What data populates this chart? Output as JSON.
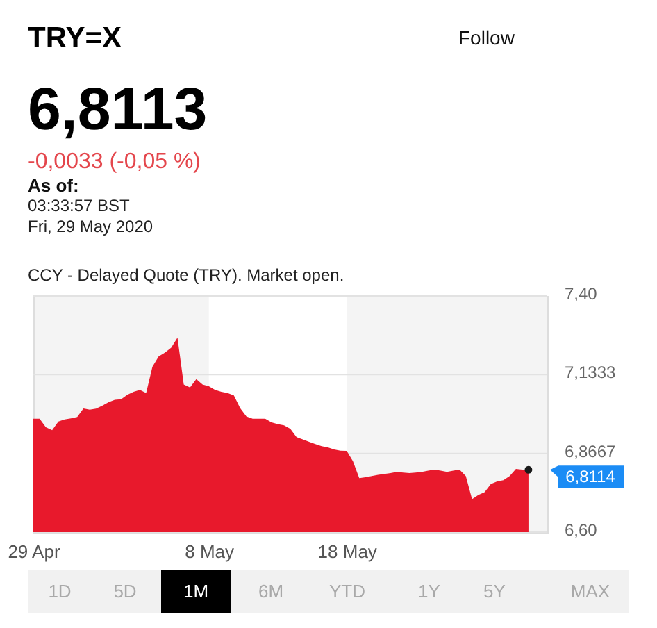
{
  "chart_data": {
    "type": "area",
    "title": "TRY=X",
    "annotations": [
      "Follow",
      "6,8113",
      "-0,0033 (-0,05 %)",
      "As of:",
      "03:33:57 BST",
      "Fri, 29 May 2020",
      "CCY - Delayed Quote (TRY). Market open.",
      "6,8114",
      "1D",
      "5D",
      "1M",
      "6M",
      "YTD",
      "1Y",
      "5Y",
      "MAX"
    ],
    "categories": [
      "29 Apr",
      null,
      null,
      null,
      null,
      null,
      null,
      null,
      null,
      null,
      null,
      null,
      null,
      null,
      null,
      null,
      null,
      null,
      null,
      null,
      null,
      null,
      null,
      null,
      null,
      null,
      null,
      null,
      "8 May",
      null,
      null,
      null,
      null,
      null,
      null,
      null,
      null,
      null,
      null,
      null,
      null,
      null,
      null,
      null,
      null,
      null,
      null,
      null,
      null,
      null,
      "18 May",
      null,
      null,
      null,
      null,
      null,
      null,
      null,
      null,
      null,
      null,
      null,
      null,
      null,
      null,
      null,
      null,
      null,
      null,
      null,
      null,
      null,
      null,
      null,
      null,
      null,
      null,
      null,
      null,
      null,
      null,
      null,
      null
    ],
    "values": [
      6.984,
      6.984,
      6.955,
      6.945,
      6.975,
      6.982,
      6.985,
      6.99,
      7.019,
      7.015,
      7.018,
      7.028,
      7.04,
      7.048,
      7.05,
      7.065,
      7.075,
      7.082,
      7.071,
      7.16,
      7.195,
      7.208,
      7.225,
      7.259,
      7.1,
      7.09,
      7.118,
      7.1,
      7.094,
      7.082,
      7.075,
      7.071,
      7.063,
      7.02,
      6.992,
      6.984,
      6.984,
      6.984,
      6.972,
      6.966,
      6.962,
      6.95,
      6.922,
      6.914,
      6.906,
      6.898,
      6.891,
      6.887,
      6.88,
      6.876,
      6.875,
      6.84,
      6.783,
      6.786,
      6.79,
      6.794,
      6.797,
      6.8,
      6.804,
      6.802,
      6.8,
      6.802,
      6.804,
      6.808,
      6.812,
      6.808,
      6.804,
      6.808,
      6.812,
      6.79,
      6.712,
      6.726,
      6.735,
      6.763,
      6.772,
      6.776,
      6.79,
      6.814,
      6.812,
      6.811,
      null,
      null,
      null
    ],
    "color": "#e8192c",
    "ylim": [
      6.6,
      7.4
    ],
    "yticks": [
      {
        "value": 6.6,
        "label": "6,60"
      },
      {
        "value": 6.8667,
        "label": "6,8667"
      },
      {
        "value": 7.1333,
        "label": "7,1333"
      },
      {
        "value": 7.4,
        "label": "7,40"
      }
    ],
    "grid": "y",
    "bands": [
      {
        "axis": "x",
        "from": "8 May",
        "to": "18 May",
        "color": "#ffffff"
      }
    ]
  }
}
